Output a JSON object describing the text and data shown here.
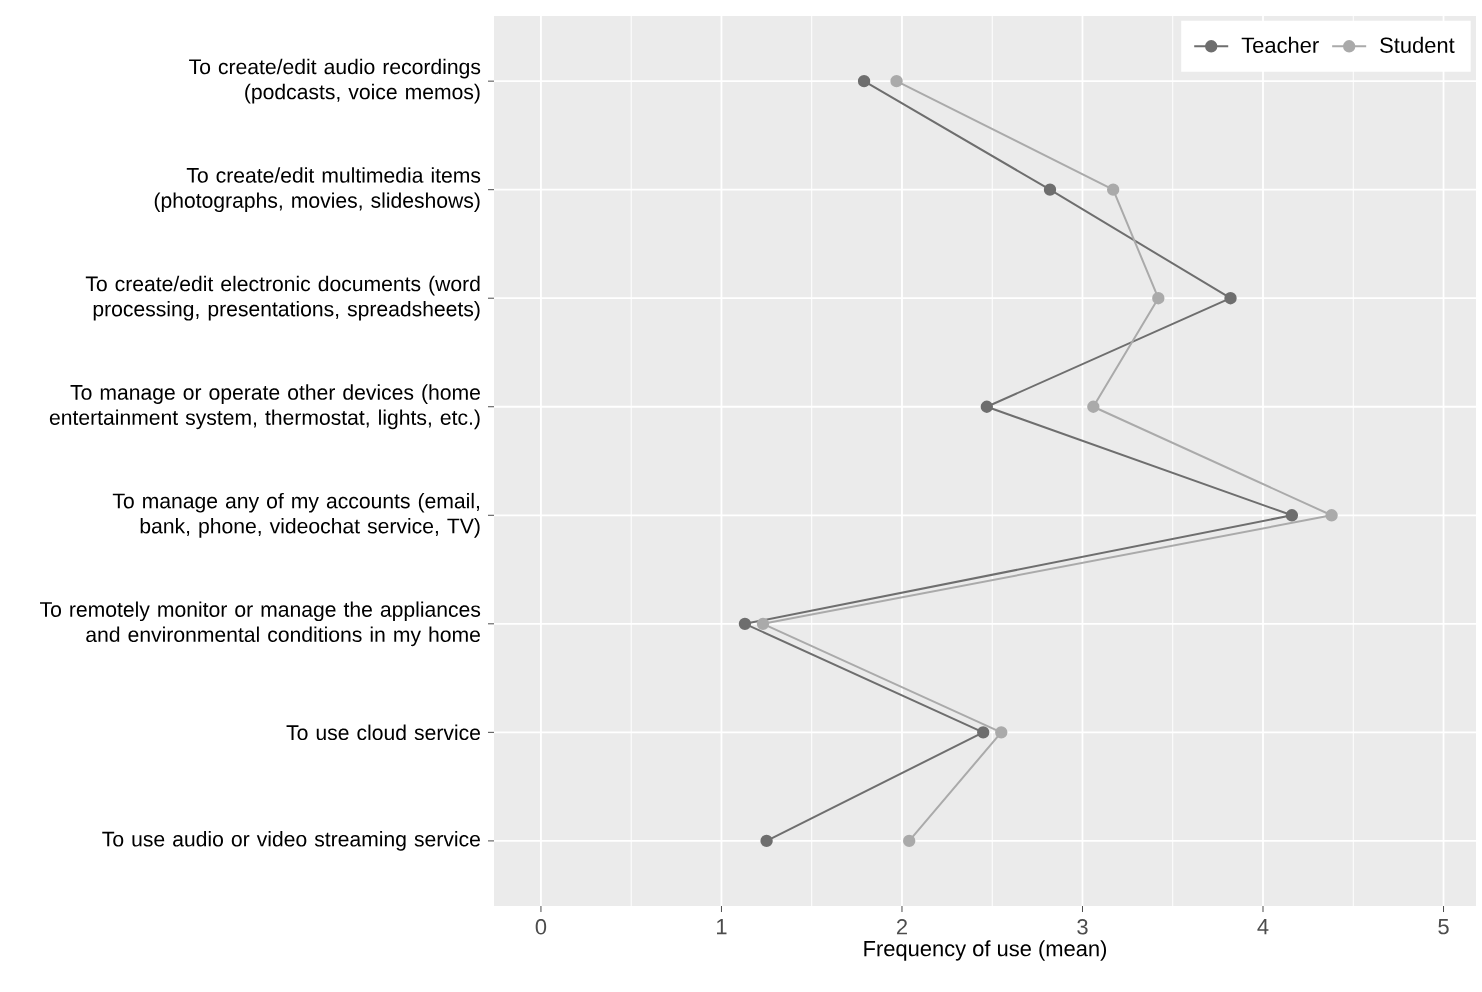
{
  "chart_data": {
    "type": "line",
    "orientation": "horizontal",
    "xlabel": "Frequency of use (mean)",
    "categories": [
      "To create/edit audio recordings (podcasts, voice memos)",
      "To create/edit multimedia items (photographs, movies, slideshows)",
      "To create/edit electronic documents (word processing, presentations, spreadsheets)",
      "To manage or operate other devices (home entertainment system, thermostat, lights, etc.)",
      "To manage any of my accounts (email, bank, phone, videochat service, TV)",
      "To remotely monitor or manage the appliances and environmental conditions in my home",
      "To use cloud service",
      "To use audio or video streaming service"
    ],
    "series": [
      {
        "name": "Teacher",
        "color": "#6e6e6e",
        "values": [
          1.79,
          2.82,
          3.82,
          2.47,
          4.16,
          1.13,
          2.45,
          1.25
        ]
      },
      {
        "name": "Student",
        "color": "#aaaaaa",
        "values": [
          1.97,
          3.17,
          3.42,
          3.06,
          4.38,
          1.23,
          2.55,
          2.04
        ]
      }
    ],
    "xlim": [
      -0.26,
      5.18
    ],
    "xticks": [
      0,
      1,
      2,
      3,
      4,
      5
    ],
    "grid": true,
    "legend": "top right",
    "marker": "circle",
    "line_style": "solid"
  }
}
